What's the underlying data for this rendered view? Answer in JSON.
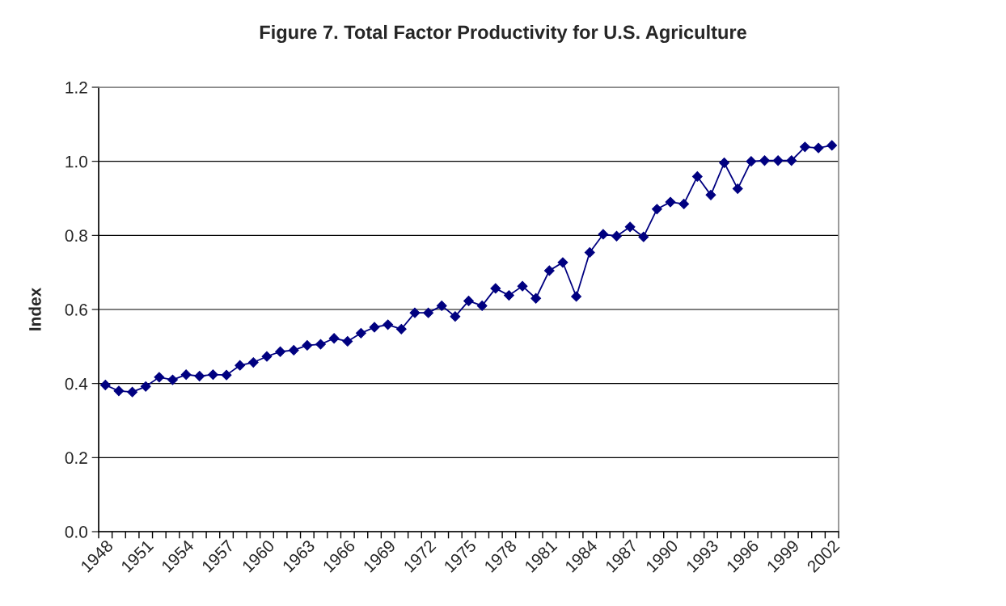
{
  "chart_data": {
    "type": "line",
    "title": "Figure 7. Total Factor Productivity for U.S. Agriculture",
    "ylabel": "Index",
    "categories": [
      "1948",
      null,
      null,
      "1951",
      null,
      null,
      "1954",
      null,
      null,
      "1957",
      null,
      null,
      "1960",
      null,
      null,
      "1963",
      null,
      null,
      "1966",
      null,
      null,
      "1969",
      null,
      null,
      "1972",
      null,
      null,
      "1975",
      null,
      null,
      "1978",
      null,
      null,
      "1981",
      null,
      null,
      "1984",
      null,
      null,
      "1987",
      null,
      null,
      "1990",
      null,
      null,
      "1993",
      null,
      null,
      "1996",
      null,
      null,
      "1999",
      null,
      null,
      "2002"
    ],
    "series": [
      {
        "color": "#000080",
        "values": [
          0.396,
          0.38,
          0.377,
          0.392,
          0.417,
          0.41,
          0.424,
          0.42,
          0.424,
          0.423,
          0.449,
          0.457,
          0.473,
          0.486,
          0.49,
          0.503,
          0.506,
          0.522,
          0.514,
          0.536,
          0.552,
          0.559,
          0.547,
          0.591,
          0.591,
          0.61,
          0.581,
          0.623,
          0.61,
          0.657,
          0.638,
          0.663,
          0.63,
          0.705,
          0.727,
          0.635,
          0.754,
          0.803,
          0.798,
          0.823,
          0.796,
          0.871,
          0.89,
          0.885,
          0.959,
          0.909,
          0.996,
          0.926,
          1.0,
          1.002,
          1.002,
          1.002,
          1.039,
          1.036,
          1.043
        ]
      }
    ],
    "ylim": [
      0,
      1.2
    ],
    "yticks": [
      {
        "value": 0,
        "label": "0.0"
      },
      0.2,
      0.4,
      0.6,
      0.8,
      {
        "value": 1,
        "label": "1.0"
      },
      1.2
    ],
    "grid": "y",
    "marker": "diamond",
    "line_style": "solid",
    "legend": false
  }
}
